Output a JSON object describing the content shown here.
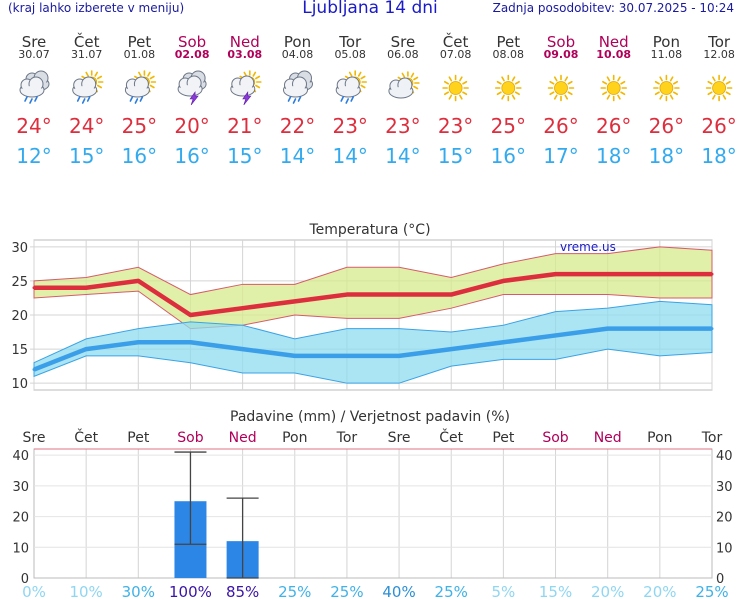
{
  "header": {
    "hint": "(kraj lahko izberete v meniju)",
    "title": "Ljubljana 14 dni",
    "updated": "Zadnja posodobitev: 30.07.2025 - 10:24"
  },
  "colors": {
    "weekday": "#333333",
    "weekend": "#b0005a",
    "tmax": "#dd2e3e",
    "tmin": "#33aaee",
    "bar": "#2c86e6"
  },
  "days": [
    {
      "name": "Sre",
      "date": "30.07",
      "weekend": false,
      "icon": "cloudy-rain",
      "tmax": "24°",
      "tmin": "12°"
    },
    {
      "name": "Čet",
      "date": "31.07",
      "weekend": false,
      "icon": "partly-cloudy-rain",
      "tmax": "24°",
      "tmin": "15°"
    },
    {
      "name": "Pet",
      "date": "01.08",
      "weekend": false,
      "icon": "partly-cloudy-rain",
      "tmax": "25°",
      "tmin": "16°"
    },
    {
      "name": "Sob",
      "date": "02.08",
      "weekend": true,
      "icon": "thunderstorm",
      "tmax": "20°",
      "tmin": "16°"
    },
    {
      "name": "Ned",
      "date": "03.08",
      "weekend": true,
      "icon": "sun-thunderstorm",
      "tmax": "21°",
      "tmin": "15°"
    },
    {
      "name": "Pon",
      "date": "04.08",
      "weekend": false,
      "icon": "cloudy-rain",
      "tmax": "22°",
      "tmin": "14°"
    },
    {
      "name": "Tor",
      "date": "05.08",
      "weekend": false,
      "icon": "partly-cloudy-rain",
      "tmax": "23°",
      "tmin": "14°"
    },
    {
      "name": "Sre",
      "date": "06.08",
      "weekend": false,
      "icon": "partly-cloudy",
      "tmax": "23°",
      "tmin": "14°"
    },
    {
      "name": "Čet",
      "date": "07.08",
      "weekend": false,
      "icon": "sunny",
      "tmax": "23°",
      "tmin": "15°"
    },
    {
      "name": "Pet",
      "date": "08.08",
      "weekend": false,
      "icon": "sunny",
      "tmax": "25°",
      "tmin": "16°"
    },
    {
      "name": "Sob",
      "date": "09.08",
      "weekend": true,
      "icon": "sunny",
      "tmax": "26°",
      "tmin": "17°"
    },
    {
      "name": "Ned",
      "date": "10.08",
      "weekend": true,
      "icon": "sunny",
      "tmax": "26°",
      "tmin": "18°"
    },
    {
      "name": "Pon",
      "date": "11.08",
      "weekend": false,
      "icon": "sunny",
      "tmax": "26°",
      "tmin": "18°"
    },
    {
      "name": "Tor",
      "date": "12.08",
      "weekend": false,
      "icon": "sunny",
      "tmax": "26°",
      "tmin": "18°"
    }
  ],
  "chart_data": [
    {
      "type": "line",
      "title": "Temperatura (°C)",
      "watermark": "vreme.us",
      "x": [
        0,
        1,
        2,
        3,
        4,
        5,
        6,
        7,
        8,
        9,
        10,
        11,
        12,
        13
      ],
      "ylim": [
        9,
        31
      ],
      "yticks": [
        10,
        15,
        20,
        25,
        30
      ],
      "series": [
        {
          "name": "Tmax",
          "values": [
            24,
            24,
            25,
            20,
            21,
            22,
            23,
            23,
            23,
            25,
            26,
            26,
            26,
            26
          ]
        },
        {
          "name": "Tmax band high",
          "values": [
            25,
            25.5,
            27,
            23,
            24.5,
            24.5,
            27,
            27,
            25.5,
            27.5,
            29,
            29,
            30,
            29.5
          ]
        },
        {
          "name": "Tmax band low",
          "values": [
            22.5,
            23,
            23.5,
            18,
            18.5,
            20,
            19.5,
            19.5,
            21,
            23,
            23,
            23,
            22.5,
            22.5
          ]
        },
        {
          "name": "Tmin",
          "values": [
            12,
            15,
            16,
            16,
            15,
            14,
            14,
            14,
            15,
            16,
            17,
            18,
            18,
            18
          ]
        },
        {
          "name": "Tmin band high",
          "values": [
            13,
            16.5,
            18,
            19,
            18.5,
            16.5,
            18,
            18,
            17.5,
            18.5,
            20.5,
            21,
            22,
            21.5
          ]
        },
        {
          "name": "Tmin band low",
          "values": [
            11,
            14,
            14,
            13,
            11.5,
            11.5,
            10,
            10,
            12.5,
            13.5,
            13.5,
            15,
            14,
            14.5
          ]
        }
      ]
    },
    {
      "type": "bar",
      "title": "Padavine (mm) / Verjetnost padavin (%)",
      "categories": [
        "Sre",
        "Čet",
        "Pet",
        "Sob",
        "Ned",
        "Pon",
        "Tor",
        "Sre",
        "Čet",
        "Pet",
        "Sob",
        "Ned",
        "Pon",
        "Tor"
      ],
      "weekend": [
        false,
        false,
        false,
        true,
        true,
        false,
        false,
        false,
        false,
        false,
        true,
        true,
        false,
        false
      ],
      "values": [
        0,
        0,
        0,
        25,
        12,
        0,
        0,
        0,
        0,
        0,
        0,
        0,
        0,
        0
      ],
      "error_low": [
        0,
        0,
        0,
        11,
        0,
        0,
        0,
        0,
        0,
        0,
        0,
        0,
        0,
        0
      ],
      "error_high": [
        0,
        0,
        0,
        41,
        26,
        0,
        0,
        0,
        0,
        0,
        0,
        0,
        0,
        0
      ],
      "ylim": [
        0,
        42
      ],
      "yticks": [
        0,
        10,
        20,
        30,
        40
      ],
      "probability": [
        "0%",
        "10%",
        "30%",
        "100%",
        "85%",
        "25%",
        "25%",
        "40%",
        "25%",
        "5%",
        "15%",
        "20%",
        "20%",
        "25%"
      ],
      "probability_values": [
        0,
        10,
        30,
        100,
        85,
        25,
        25,
        40,
        25,
        5,
        15,
        20,
        20,
        25
      ]
    }
  ]
}
